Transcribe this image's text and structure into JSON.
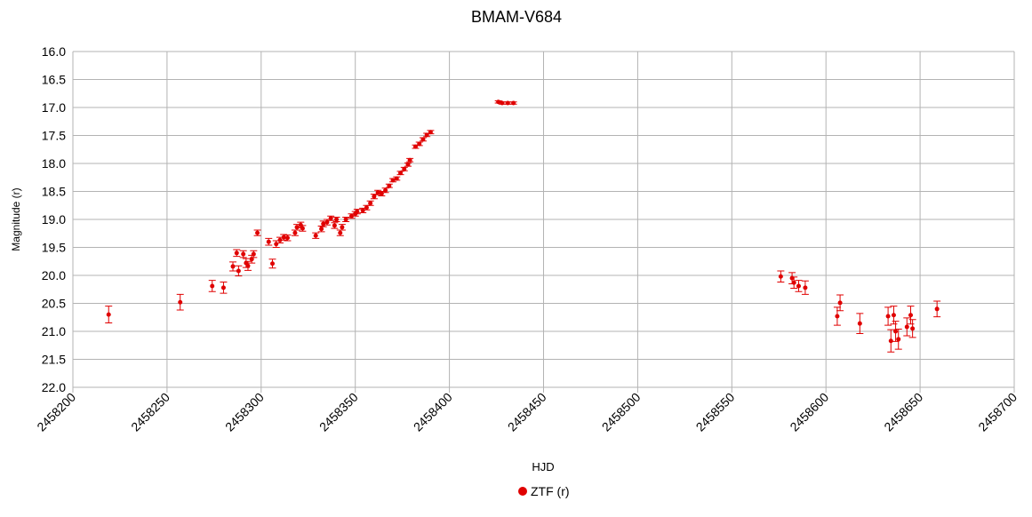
{
  "chart_data": {
    "type": "scatter",
    "title": "BMAM-V684",
    "x_label": "HJD",
    "y_label": "Magnitude (r)",
    "x": [
      2458219,
      2458257,
      2458274,
      2458280,
      2458285,
      2458287,
      2458288,
      2458290.5,
      2458292,
      2458293,
      2458295,
      2458296,
      2458298,
      2458304,
      2458306,
      2458308,
      2458310,
      2458312,
      2458314,
      2458318,
      2458319,
      2458321,
      2458322,
      2458329,
      2458332,
      2458333,
      2458335,
      2458337,
      2458339,
      2458340,
      2458342,
      2458343,
      2458345,
      2458348,
      2458350,
      2458351,
      2458354,
      2458356,
      2458358,
      2458360,
      2458362,
      2458364,
      2458366,
      2458368,
      2458370,
      2458372,
      2458374,
      2458376,
      2458378,
      2458379,
      2458382,
      2458384,
      2458386,
      2458388,
      2458390,
      2458426,
      2458428,
      2458431,
      2458434,
      2458576,
      2458582,
      2458583,
      2458585.5,
      2458589,
      2458606,
      2458607.5,
      2458618,
      2458633,
      2458634.5,
      2458636,
      2458637,
      2458638.5,
      2458643,
      2458645,
      2458646,
      2458659
    ],
    "series": [
      {
        "name": "ZTF (r)",
        "color": "#e00000",
        "values": [
          20.7,
          20.48,
          20.19,
          20.22,
          19.84,
          19.6,
          19.92,
          19.62,
          19.78,
          19.83,
          19.71,
          19.62,
          19.24,
          19.4,
          19.79,
          19.44,
          19.37,
          19.32,
          19.33,
          19.24,
          19.14,
          19.1,
          19.16,
          19.29,
          19.17,
          19.08,
          19.05,
          18.98,
          19.11,
          19.0,
          19.24,
          19.14,
          19.0,
          18.94,
          18.9,
          18.86,
          18.84,
          18.79,
          18.71,
          18.59,
          18.52,
          18.54,
          18.48,
          18.4,
          18.3,
          18.27,
          18.17,
          18.1,
          18.02,
          17.94,
          17.7,
          17.65,
          17.57,
          17.49,
          17.44,
          16.9,
          16.92,
          16.92,
          16.92,
          20.02,
          20.05,
          20.13,
          20.19,
          20.22,
          20.73,
          20.49,
          20.86,
          20.73,
          21.17,
          20.71,
          21.0,
          21.14,
          20.92,
          20.71,
          20.95,
          20.6
        ],
        "errors": [
          0.15,
          0.14,
          0.1,
          0.1,
          0.08,
          0.06,
          0.09,
          0.06,
          0.08,
          0.08,
          0.07,
          0.06,
          0.05,
          0.06,
          0.08,
          0.06,
          0.05,
          0.05,
          0.05,
          0.05,
          0.05,
          0.05,
          0.05,
          0.05,
          0.05,
          0.05,
          0.05,
          0.04,
          0.05,
          0.04,
          0.05,
          0.05,
          0.04,
          0.04,
          0.04,
          0.04,
          0.04,
          0.04,
          0.04,
          0.04,
          0.04,
          0.04,
          0.04,
          0.03,
          0.03,
          0.03,
          0.03,
          0.03,
          0.03,
          0.03,
          0.03,
          0.03,
          0.03,
          0.03,
          0.03,
          0.02,
          0.02,
          0.02,
          0.02,
          0.1,
          0.1,
          0.1,
          0.1,
          0.12,
          0.16,
          0.14,
          0.18,
          0.16,
          0.2,
          0.16,
          0.18,
          0.18,
          0.16,
          0.16,
          0.16,
          0.14
        ]
      }
    ],
    "xlim": [
      2458200,
      2458700
    ],
    "xticks": [
      2458200,
      2458250,
      2458300,
      2458350,
      2458400,
      2458450,
      2458500,
      2458550,
      2458600,
      2458650,
      2458700
    ],
    "ylim": [
      16,
      22
    ],
    "y_inverted": true,
    "yticks": [
      {
        "value": 16,
        "label": "16.0"
      },
      16.5,
      {
        "value": 17,
        "label": "17.0"
      },
      17.5,
      {
        "value": 18,
        "label": "18.0"
      },
      18.5,
      {
        "value": 19,
        "label": "19.0"
      },
      19.5,
      {
        "value": 20,
        "label": "20.0"
      },
      20.5,
      {
        "value": 21,
        "label": "21.0"
      },
      21.5,
      {
        "value": 22,
        "label": "22.0"
      }
    ],
    "grid": true,
    "legend": "bottom"
  }
}
